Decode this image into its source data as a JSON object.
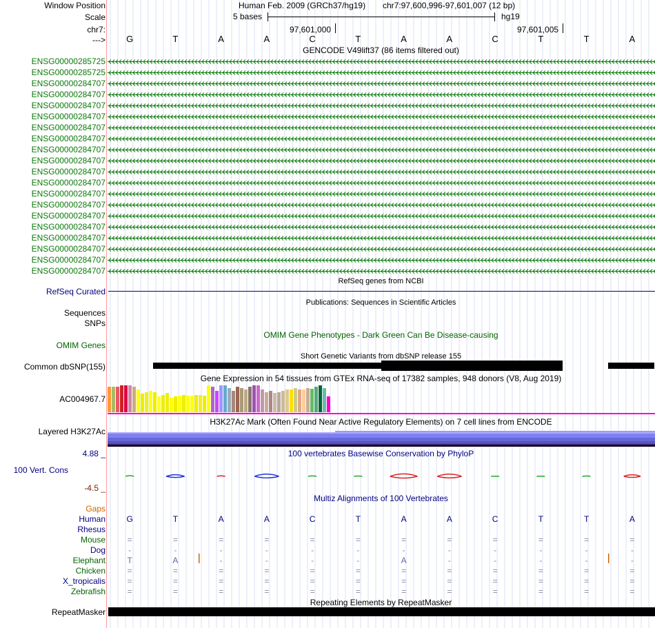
{
  "header": {
    "row_labels": [
      "Window Position",
      "Scale",
      "chr7:",
      "--->"
    ],
    "assembly": "Human Feb. 2009 (GRCh37/hg19)",
    "position": "chr7:97,600,996-97,601,007 (12 bp)",
    "scale_text": "5 bases",
    "db": "hg19",
    "coord_left": "97,601,000",
    "coord_right": "97,601,005",
    "bases": [
      "G",
      "T",
      "A",
      "A",
      "C",
      "T",
      "A",
      "A",
      "C",
      "T",
      "T",
      "A"
    ]
  },
  "gencode": {
    "title": "GENCODE V49lift37 (86 items filtered out)",
    "genes": [
      "ENSG00000285725",
      "ENSG00000285725",
      "ENSG00000284707",
      "ENSG00000284707",
      "ENSG00000284707",
      "ENSG00000284707",
      "ENSG00000284707",
      "ENSG00000284707",
      "ENSG00000284707",
      "ENSG00000284707",
      "ENSG00000284707",
      "ENSG00000284707",
      "ENSG00000284707",
      "ENSG00000284707",
      "ENSG00000284707",
      "ENSG00000284707",
      "ENSG00000284707",
      "ENSG00000284707",
      "ENSG00000284707",
      "ENSG00000284707"
    ],
    "color": "#0a7a0a"
  },
  "refseq": {
    "title": "RefSeq genes from NCBI",
    "label": "RefSeq Curated"
  },
  "publications": {
    "title": "Publications: Sequences in Scientific Articles",
    "label": "Sequences"
  },
  "snps": {
    "label": "SNPs"
  },
  "omim": {
    "title": "OMIM Gene Phenotypes - Dark Green Can Be Disease-causing",
    "label": "OMIM Genes"
  },
  "dbsnp": {
    "title": "Short Genetic Variants from dbSNP release 155",
    "label": "Common dbSNP(155)"
  },
  "gtex": {
    "title": "Gene Expression in 54 tissues from GTEx RNA-seq of 17382 samples, 948 donors (V8, Aug 2019)",
    "label": "AC004967.7",
    "bar_values": [
      0.95,
      0.95,
      0.95,
      1.0,
      1.0,
      1.0,
      0.95,
      0.85,
      0.7,
      0.75,
      0.8,
      0.75,
      0.6,
      0.65,
      0.72,
      0.55,
      0.6,
      0.62,
      0.65,
      0.62,
      0.62,
      0.65,
      0.65,
      0.62,
      1.0,
      0.95,
      0.8,
      1.0,
      1.0,
      0.9,
      0.8,
      0.95,
      0.9,
      0.85,
      0.95,
      1.0,
      1.0,
      0.85,
      0.75,
      0.8,
      0.72,
      0.75,
      0.8,
      0.85,
      0.85,
      0.9,
      0.85,
      0.85,
      0.9,
      0.88,
      0.95,
      1.0,
      0.9,
      0.6
    ],
    "bar_colors": [
      "#ff9933",
      "#aabb66",
      "#ee5566",
      "#cc2222",
      "#dd0044",
      "#cc88aa",
      "#ccaa88",
      "#ffff00",
      "#eeee00",
      "#eeee22",
      "#ffff11",
      "#eeee00",
      "#ffff22",
      "#eeee00",
      "#eeee11",
      "#ffff00",
      "#eeee00",
      "#ffff11",
      "#eeee00",
      "#ffff00",
      "#ffff11",
      "#eeee00",
      "#eeee22",
      "#eeee00",
      "#ffff00",
      "#aa66cc",
      "#cc44ff",
      "#9999ff",
      "#66aacc",
      "#99aabb",
      "#aa8877",
      "#996655",
      "#aa9977",
      "#bbaa88",
      "#887766",
      "#9955aa",
      "#cc66cc",
      "#bb99aa",
      "#ccaa99",
      "#aa8888",
      "#ccbbaa",
      "#bbaa99",
      "#ccbb99",
      "#ddcc88",
      "#ffdd00",
      "#cccc88",
      "#ddaa88",
      "#ffcc99",
      "#ccaa99",
      "#66bb66",
      "#55aa77",
      "#006633",
      "#66bbaa",
      "#ff00cc"
    ],
    "baseline_color": "#ff00cc"
  },
  "h3k27": {
    "title": "H3K27Ac Mark (Often Found Near Active Regulatory Elements) on 7 cell lines from ENCODE",
    "label": "Layered H3K27Ac"
  },
  "phylop": {
    "title": "100 vertebrates Basewise Conservation by PhyloP",
    "label": "100 Vert. Cons",
    "max_label": "4.88 _",
    "min_label": "-4.5 _",
    "scores": [
      0.25,
      0.6,
      0.2,
      0.8,
      0.15,
      0.12,
      0.9,
      0.8,
      0.05,
      0.05,
      0.12,
      0.55
    ]
  },
  "multiz": {
    "title": "Multiz Alignments of 100 Vertebrates",
    "gaps_label": "Gaps",
    "species": [
      {
        "name": "Human",
        "seq": [
          "G",
          "T",
          "A",
          "A",
          "C",
          "T",
          "A",
          "A",
          "C",
          "T",
          "T",
          "A"
        ],
        "color": "#000080"
      },
      {
        "name": "Rhesus",
        "seq": [
          "",
          "",
          "",
          "",
          "",
          "",
          "",
          "",
          "",
          "",
          "",
          ""
        ],
        "color": "#000080"
      },
      {
        "name": "Mouse",
        "seq": [
          "=",
          "=",
          "=",
          "=",
          "=",
          "=",
          "=",
          "=",
          "=",
          "=",
          "=",
          "="
        ],
        "color": "#006400"
      },
      {
        "name": "Dog",
        "seq": [
          "-",
          "-",
          "-",
          "-",
          "-",
          "-",
          "-",
          "-",
          "-",
          "-",
          "-",
          "-"
        ],
        "color": "#000080"
      },
      {
        "name": "Elephant",
        "seq": [
          "T",
          "A",
          "-",
          "-",
          "-",
          "-",
          "A",
          "-",
          "-",
          "-",
          "-",
          "-"
        ],
        "color": "#006400"
      },
      {
        "name": "Chicken",
        "seq": [
          "=",
          "=",
          "=",
          "=",
          "=",
          "=",
          "=",
          "=",
          "=",
          "=",
          "=",
          "="
        ],
        "color": "#006400"
      },
      {
        "name": "X_tropicalis",
        "seq": [
          "=",
          "=",
          "=",
          "=",
          "=",
          "=",
          "=",
          "=",
          "=",
          "=",
          "=",
          "="
        ],
        "color": "#000080"
      },
      {
        "name": "Zebrafish",
        "seq": [
          "=",
          "=",
          "=",
          "=",
          "=",
          "=",
          "=",
          "=",
          "=",
          "=",
          "=",
          "="
        ],
        "color": "#006400"
      }
    ]
  },
  "repeatmasker": {
    "title": "Repeating Elements by RepeatMasker",
    "label": "RepeatMasker"
  },
  "colors": {
    "navy": "#000080",
    "dark_green": "#006400",
    "gencode_green": "#0a7a0a",
    "gaps_orange": "#cc6600",
    "phylop_min": "#7a1a00",
    "separator": "#ff8888"
  }
}
